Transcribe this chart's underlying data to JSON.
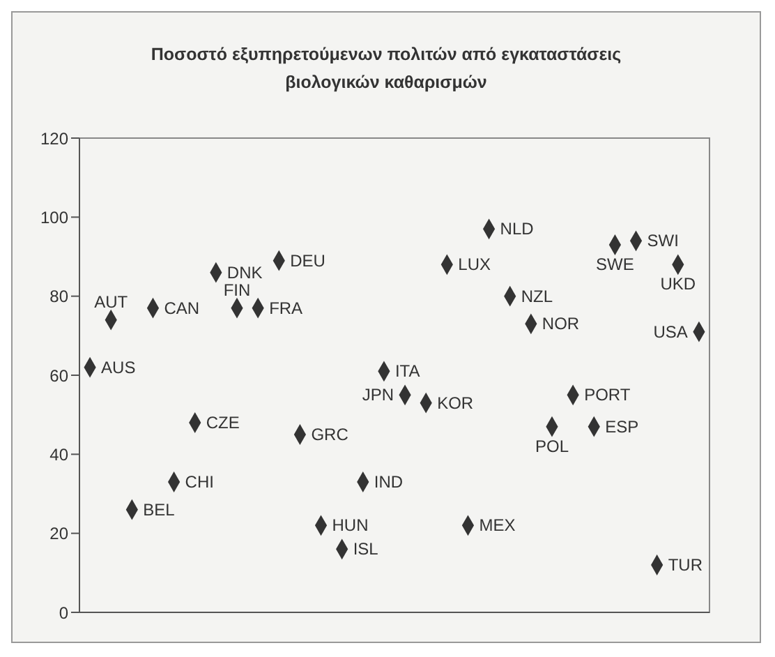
{
  "chart_data": {
    "type": "scatter",
    "title": "Ποσοστό εξυπηρετούμενων πολιτών από εγκαταστάσεις βιολογικών καθαρισμών",
    "categories": [
      null,
      null,
      null,
      null,
      null,
      null,
      null,
      null,
      null,
      null,
      null,
      null,
      null,
      null,
      null,
      null,
      null,
      null,
      null,
      null,
      null,
      null,
      null,
      null,
      null,
      null,
      null,
      null,
      null,
      null
    ],
    "series": [
      {
        "name": "AUS",
        "color": "#333333",
        "values": [
          62,
          null,
          null,
          null,
          null,
          null,
          null,
          null,
          null,
          null,
          null,
          null,
          null,
          null,
          null,
          null,
          null,
          null,
          null,
          null,
          null,
          null,
          null,
          null,
          null,
          null,
          null,
          null,
          null,
          null
        ]
      },
      {
        "name": "AUT",
        "color": "#333333",
        "values": [
          null,
          74,
          null,
          null,
          null,
          null,
          null,
          null,
          null,
          null,
          null,
          null,
          null,
          null,
          null,
          null,
          null,
          null,
          null,
          null,
          null,
          null,
          null,
          null,
          null,
          null,
          null,
          null,
          null,
          null
        ]
      },
      {
        "name": "BEL",
        "color": "#333333",
        "values": [
          null,
          null,
          26,
          null,
          null,
          null,
          null,
          null,
          null,
          null,
          null,
          null,
          null,
          null,
          null,
          null,
          null,
          null,
          null,
          null,
          null,
          null,
          null,
          null,
          null,
          null,
          null,
          null,
          null,
          null
        ]
      },
      {
        "name": "CAN",
        "color": "#333333",
        "values": [
          null,
          null,
          null,
          77,
          null,
          null,
          null,
          null,
          null,
          null,
          null,
          null,
          null,
          null,
          null,
          null,
          null,
          null,
          null,
          null,
          null,
          null,
          null,
          null,
          null,
          null,
          null,
          null,
          null,
          null
        ]
      },
      {
        "name": "CHI",
        "color": "#333333",
        "values": [
          null,
          null,
          null,
          null,
          33,
          null,
          null,
          null,
          null,
          null,
          null,
          null,
          null,
          null,
          null,
          null,
          null,
          null,
          null,
          null,
          null,
          null,
          null,
          null,
          null,
          null,
          null,
          null,
          null,
          null
        ]
      },
      {
        "name": "CZE",
        "color": "#333333",
        "values": [
          null,
          null,
          null,
          null,
          null,
          48,
          null,
          null,
          null,
          null,
          null,
          null,
          null,
          null,
          null,
          null,
          null,
          null,
          null,
          null,
          null,
          null,
          null,
          null,
          null,
          null,
          null,
          null,
          null,
          null
        ]
      },
      {
        "name": "DNK",
        "color": "#333333",
        "values": [
          null,
          null,
          null,
          null,
          null,
          null,
          86,
          null,
          null,
          null,
          null,
          null,
          null,
          null,
          null,
          null,
          null,
          null,
          null,
          null,
          null,
          null,
          null,
          null,
          null,
          null,
          null,
          null,
          null,
          null
        ]
      },
      {
        "name": "FIN",
        "color": "#333333",
        "values": [
          null,
          null,
          null,
          null,
          null,
          null,
          null,
          77,
          null,
          null,
          null,
          null,
          null,
          null,
          null,
          null,
          null,
          null,
          null,
          null,
          null,
          null,
          null,
          null,
          null,
          null,
          null,
          null,
          null,
          null
        ]
      },
      {
        "name": "FRA",
        "color": "#333333",
        "values": [
          null,
          null,
          null,
          null,
          null,
          null,
          null,
          null,
          77,
          null,
          null,
          null,
          null,
          null,
          null,
          null,
          null,
          null,
          null,
          null,
          null,
          null,
          null,
          null,
          null,
          null,
          null,
          null,
          null,
          null
        ]
      },
      {
        "name": "DEU",
        "color": "#333333",
        "values": [
          null,
          null,
          null,
          null,
          null,
          null,
          null,
          null,
          null,
          89,
          null,
          null,
          null,
          null,
          null,
          null,
          null,
          null,
          null,
          null,
          null,
          null,
          null,
          null,
          null,
          null,
          null,
          null,
          null,
          null
        ]
      },
      {
        "name": "GRC",
        "color": "#333333",
        "values": [
          null,
          null,
          null,
          null,
          null,
          null,
          null,
          null,
          null,
          null,
          45,
          null,
          null,
          null,
          null,
          null,
          null,
          null,
          null,
          null,
          null,
          null,
          null,
          null,
          null,
          null,
          null,
          null,
          null,
          null
        ]
      },
      {
        "name": "HUN",
        "color": "#333333",
        "values": [
          null,
          null,
          null,
          null,
          null,
          null,
          null,
          null,
          null,
          null,
          null,
          22,
          null,
          null,
          null,
          null,
          null,
          null,
          null,
          null,
          null,
          null,
          null,
          null,
          null,
          null,
          null,
          null,
          null,
          null
        ]
      },
      {
        "name": "ISL",
        "color": "#333333",
        "values": [
          null,
          null,
          null,
          null,
          null,
          null,
          null,
          null,
          null,
          null,
          null,
          null,
          16,
          null,
          null,
          null,
          null,
          null,
          null,
          null,
          null,
          null,
          null,
          null,
          null,
          null,
          null,
          null,
          null,
          null
        ]
      },
      {
        "name": "IND",
        "color": "#333333",
        "values": [
          null,
          null,
          null,
          null,
          null,
          null,
          null,
          null,
          null,
          null,
          null,
          null,
          null,
          33,
          null,
          null,
          null,
          null,
          null,
          null,
          null,
          null,
          null,
          null,
          null,
          null,
          null,
          null,
          null,
          null
        ]
      },
      {
        "name": "ITA",
        "color": "#333333",
        "values": [
          null,
          null,
          null,
          null,
          null,
          null,
          null,
          null,
          null,
          null,
          null,
          null,
          null,
          null,
          61,
          null,
          null,
          null,
          null,
          null,
          null,
          null,
          null,
          null,
          null,
          null,
          null,
          null,
          null,
          null
        ]
      },
      {
        "name": "JPN",
        "color": "#333333",
        "values": [
          null,
          null,
          null,
          null,
          null,
          null,
          null,
          null,
          null,
          null,
          null,
          null,
          null,
          null,
          null,
          55,
          null,
          null,
          null,
          null,
          null,
          null,
          null,
          null,
          null,
          null,
          null,
          null,
          null,
          null
        ]
      },
      {
        "name": "KOR",
        "color": "#333333",
        "values": [
          null,
          null,
          null,
          null,
          null,
          null,
          null,
          null,
          null,
          null,
          null,
          null,
          null,
          null,
          null,
          null,
          53,
          null,
          null,
          null,
          null,
          null,
          null,
          null,
          null,
          null,
          null,
          null,
          null,
          null
        ]
      },
      {
        "name": "LUX",
        "color": "#333333",
        "values": [
          null,
          null,
          null,
          null,
          null,
          null,
          null,
          null,
          null,
          null,
          null,
          null,
          null,
          null,
          null,
          null,
          null,
          88,
          null,
          null,
          null,
          null,
          null,
          null,
          null,
          null,
          null,
          null,
          null,
          null
        ]
      },
      {
        "name": "MEX",
        "color": "#333333",
        "values": [
          null,
          null,
          null,
          null,
          null,
          null,
          null,
          null,
          null,
          null,
          null,
          null,
          null,
          null,
          null,
          null,
          null,
          null,
          22,
          null,
          null,
          null,
          null,
          null,
          null,
          null,
          null,
          null,
          null,
          null
        ]
      },
      {
        "name": "NLD",
        "color": "#333333",
        "values": [
          null,
          null,
          null,
          null,
          null,
          null,
          null,
          null,
          null,
          null,
          null,
          null,
          null,
          null,
          null,
          null,
          null,
          null,
          null,
          97,
          null,
          null,
          null,
          null,
          null,
          null,
          null,
          null,
          null,
          null
        ]
      },
      {
        "name": "NZL",
        "color": "#333333",
        "values": [
          null,
          null,
          null,
          null,
          null,
          null,
          null,
          null,
          null,
          null,
          null,
          null,
          null,
          null,
          null,
          null,
          null,
          null,
          null,
          null,
          80,
          null,
          null,
          null,
          null,
          null,
          null,
          null,
          null,
          null
        ]
      },
      {
        "name": "NOR",
        "color": "#333333",
        "values": [
          null,
          null,
          null,
          null,
          null,
          null,
          null,
          null,
          null,
          null,
          null,
          null,
          null,
          null,
          null,
          null,
          null,
          null,
          null,
          null,
          null,
          73,
          null,
          null,
          null,
          null,
          null,
          null,
          null,
          null
        ]
      },
      {
        "name": "POL",
        "color": "#333333",
        "values": [
          null,
          null,
          null,
          null,
          null,
          null,
          null,
          null,
          null,
          null,
          null,
          null,
          null,
          null,
          null,
          null,
          null,
          null,
          null,
          null,
          null,
          null,
          47,
          null,
          null,
          null,
          null,
          null,
          null,
          null
        ]
      },
      {
        "name": "PORT",
        "color": "#333333",
        "values": [
          null,
          null,
          null,
          null,
          null,
          null,
          null,
          null,
          null,
          null,
          null,
          null,
          null,
          null,
          null,
          null,
          null,
          null,
          null,
          null,
          null,
          null,
          null,
          55,
          null,
          null,
          null,
          null,
          null,
          null
        ]
      },
      {
        "name": "ESP",
        "color": "#333333",
        "values": [
          null,
          null,
          null,
          null,
          null,
          null,
          null,
          null,
          null,
          null,
          null,
          null,
          null,
          null,
          null,
          null,
          null,
          null,
          null,
          null,
          null,
          null,
          null,
          null,
          47,
          null,
          null,
          null,
          null,
          null
        ]
      },
      {
        "name": "SWE",
        "color": "#333333",
        "values": [
          null,
          null,
          null,
          null,
          null,
          null,
          null,
          null,
          null,
          null,
          null,
          null,
          null,
          null,
          null,
          null,
          null,
          null,
          null,
          null,
          null,
          null,
          null,
          null,
          null,
          93,
          null,
          null,
          null,
          null
        ]
      },
      {
        "name": "SWI",
        "color": "#333333",
        "values": [
          null,
          null,
          null,
          null,
          null,
          null,
          null,
          null,
          null,
          null,
          null,
          null,
          null,
          null,
          null,
          null,
          null,
          null,
          null,
          null,
          null,
          null,
          null,
          null,
          null,
          null,
          94,
          null,
          null,
          null
        ]
      },
      {
        "name": "TUR",
        "color": "#333333",
        "values": [
          null,
          null,
          null,
          null,
          null,
          null,
          null,
          null,
          null,
          null,
          null,
          null,
          null,
          null,
          null,
          null,
          null,
          null,
          null,
          null,
          null,
          null,
          null,
          null,
          null,
          null,
          null,
          12,
          null,
          null
        ]
      },
      {
        "name": "UKD",
        "color": "#333333",
        "values": [
          null,
          null,
          null,
          null,
          null,
          null,
          null,
          null,
          null,
          null,
          null,
          null,
          null,
          null,
          null,
          null,
          null,
          null,
          null,
          null,
          null,
          null,
          null,
          null,
          null,
          null,
          null,
          null,
          88,
          null
        ]
      },
      {
        "name": "USA",
        "color": "#333333",
        "values": [
          null,
          null,
          null,
          null,
          null,
          null,
          null,
          null,
          null,
          null,
          null,
          null,
          null,
          null,
          null,
          null,
          null,
          null,
          null,
          null,
          null,
          null,
          null,
          null,
          null,
          null,
          null,
          null,
          null,
          71
        ]
      }
    ],
    "marker": "diamond",
    "ylim": [
      0,
      120
    ],
    "yticks": [
      0,
      20,
      40,
      60,
      80,
      100,
      120
    ],
    "tick_labels": "y"
  }
}
